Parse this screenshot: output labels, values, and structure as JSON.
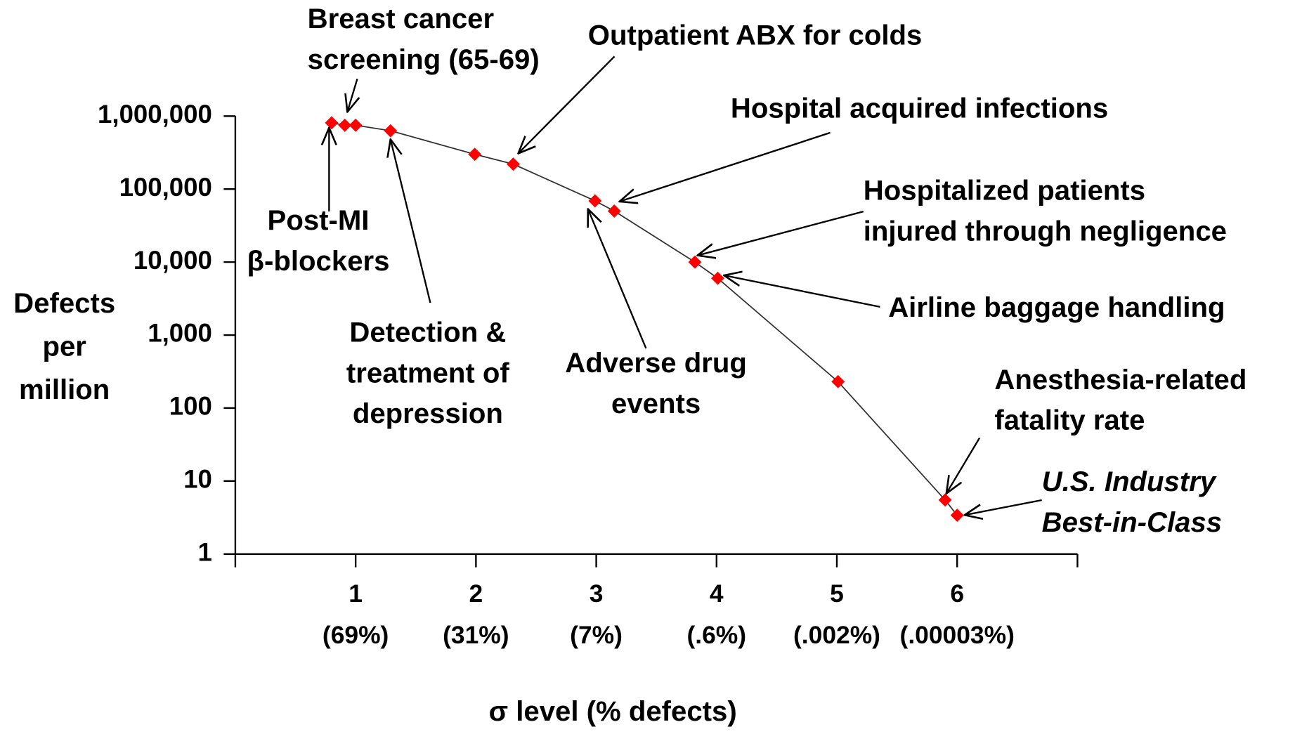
{
  "chart_data": {
    "type": "line",
    "xlabel": "σ level (% defects)",
    "ylabel": [
      "Defects",
      "per",
      "million"
    ],
    "xlim": [
      0,
      7
    ],
    "xticks": [
      1,
      2,
      3,
      4,
      5,
      6
    ],
    "xtick_sublabels": [
      "(69%)",
      "(31%)",
      "(7%)",
      "(.6%)",
      "(.002%)",
      "(.00003%)"
    ],
    "ylim": [
      1,
      1000000
    ],
    "yscale": "log",
    "yticks": [
      1,
      10,
      100,
      {
        "value": 1000,
        "label": "1,000"
      },
      {
        "value": 10000,
        "label": "10,000"
      },
      {
        "value": 100000,
        "label": "100,000"
      },
      {
        "value": 1000000,
        "label": "1,000,000"
      }
    ],
    "series": [
      {
        "color": "#ff0000",
        "line_color": "#333333",
        "x": [
          0.8,
          0.91,
          1.0,
          1.29,
          1.99,
          2.31,
          2.99,
          3.15,
          3.82,
          4.01,
          5.01,
          5.9,
          6.0
        ],
        "values": [
          810000,
          750000,
          750000,
          630000,
          300000,
          220000,
          69000,
          50000,
          10000,
          6000,
          230,
          5.5,
          3.4
        ]
      }
    ],
    "annotations": [
      {
        "lines": [
          "Post-MI",
          "β-blockers"
        ]
      },
      {
        "lines": [
          "Breast cancer",
          "screening (65-69)"
        ]
      },
      {
        "lines": [
          "Outpatient ABX for colds"
        ]
      },
      {
        "lines": [
          "Hospital acquired infections"
        ]
      },
      {
        "lines": [
          "Hospitalized patients",
          "injured through negligence"
        ]
      },
      {
        "lines": [
          "Airline baggage handling"
        ]
      },
      {
        "lines": [
          "Detection &",
          "treatment of",
          "depression"
        ]
      },
      {
        "lines": [
          "Adverse drug",
          "events"
        ]
      },
      {
        "lines": [
          "Anesthesia-related",
          "fatality rate"
        ]
      },
      {
        "lines": [
          "U.S. Industry",
          "Best-in-Class"
        ]
      }
    ]
  }
}
